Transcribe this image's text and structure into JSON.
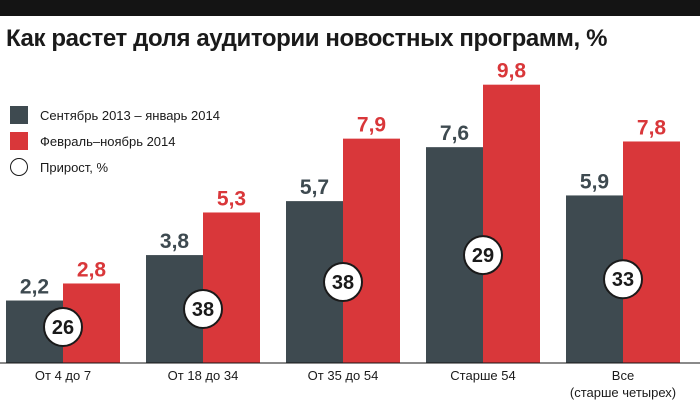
{
  "title": "Как растет доля аудитории новостных программ, %",
  "colors": {
    "series1": "#3e4a50",
    "series2": "#d9373a",
    "title": "#1a1a1a",
    "bar_rule": "#141414"
  },
  "legend": [
    {
      "label": "Сентябрь 2013 – январь 2014",
      "swatch": "series1"
    },
    {
      "label": "Февраль–ноябрь 2014",
      "swatch": "series2"
    },
    {
      "label": "Прирост, %",
      "swatch": "circle"
    }
  ],
  "chart_data": {
    "type": "bar",
    "title": "Как растет доля аудитории новостных программ, %",
    "categories": [
      "От 4 до 7",
      "От 18 до 34",
      "От 35 до 54",
      "Старше 54",
      "Все (старше четырех)"
    ],
    "category_lines": [
      [
        "От 4 до 7"
      ],
      [
        "От 18 до 34"
      ],
      [
        "От 35 до 54"
      ],
      [
        "Старше 54"
      ],
      [
        "Все",
        "(старше четырех)"
      ]
    ],
    "series": [
      {
        "name": "Сентябрь 2013 – январь 2014",
        "values": [
          2.2,
          3.8,
          5.7,
          7.6,
          5.9
        ],
        "labels": [
          "2,2",
          "3,8",
          "5,7",
          "7,6",
          "5,9"
        ]
      },
      {
        "name": "Февраль–ноябрь 2014",
        "values": [
          2.8,
          5.3,
          7.9,
          9.8,
          7.8
        ],
        "labels": [
          "2,8",
          "5,3",
          "7,9",
          "9,8",
          "7,8"
        ]
      }
    ],
    "growth": {
      "name": "Прирост, %",
      "values": [
        26,
        38,
        38,
        29,
        33
      ]
    },
    "ylim": [
      0,
      10
    ],
    "grid": false,
    "legend_position": "top-left",
    "xlabel": "",
    "ylabel": ""
  }
}
